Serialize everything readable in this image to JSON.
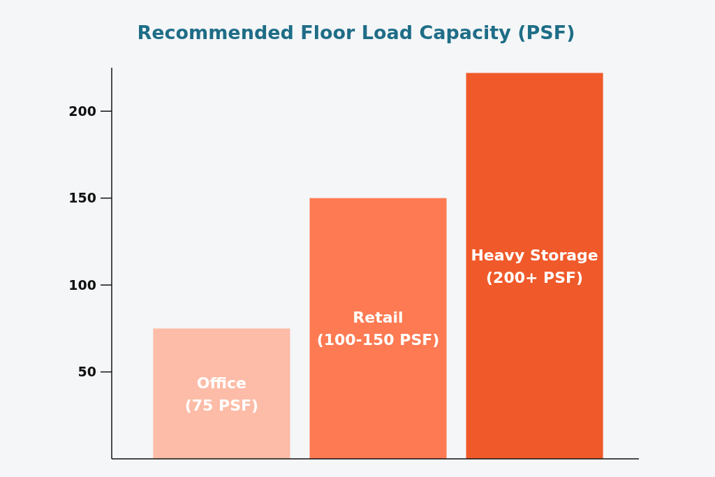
{
  "chart_data": {
    "type": "bar",
    "title": "Recommended Floor Load Capacity (PSF)",
    "categories": [
      "Office\n(75 PSF)",
      "Retail\n(100-150 PSF)",
      "Heavy Storage\n(200+ PSF)"
    ],
    "values": [
      75,
      150,
      222
    ],
    "colors": [
      "#fdbca7",
      "#fd7a52",
      "#f05a2a"
    ],
    "ylim": [
      0,
      225
    ],
    "yticks": [
      50,
      100,
      150,
      200
    ],
    "grid": false
  }
}
